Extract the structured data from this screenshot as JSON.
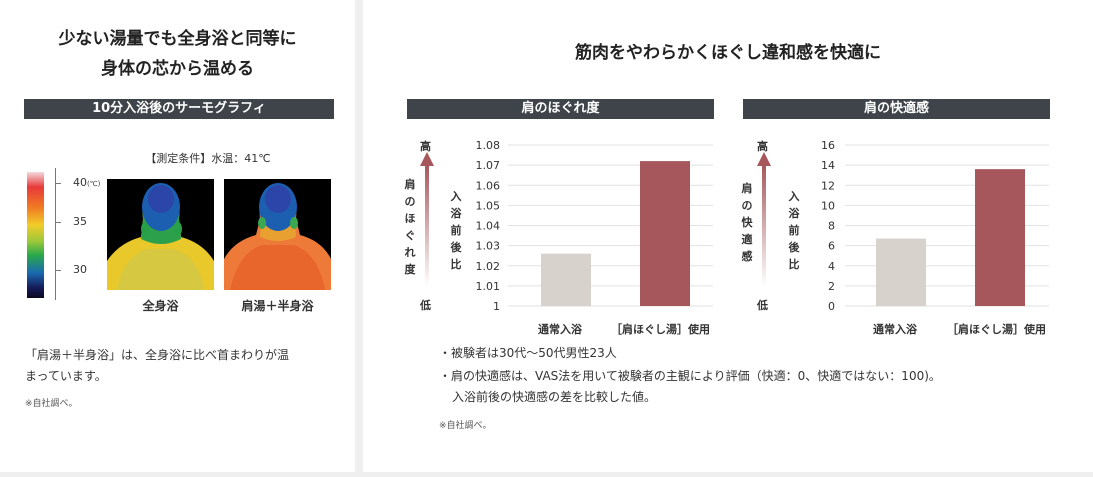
{
  "left": {
    "title_line1": "少ない湯量でも全身浴と同等に",
    "title_line2": "身体の芯から温める",
    "section_label": "10分入浴後のサーモグラフィ",
    "condition": "【測定条件】水温：41℃",
    "scale_labels": [
      "40",
      "35",
      "30"
    ],
    "scale_unit": "(℃)",
    "image_labels": [
      "全身浴",
      "肩湯＋半身浴"
    ],
    "description_line1": "「肩湯＋半身浴」は、全身浴に比べ首まわりが温",
    "description_line2": "まっています。",
    "note": "※自社調べ。"
  },
  "right": {
    "title": "筋肉をやわらかくほぐし違和感を快適に",
    "bullet1": "・被験者は30代〜50代男性23人",
    "bullet2": "・肩の快適感は、VAS法を用いて被験者の主観により評価（快適：0、快適ではない：100)。",
    "bullet2_cont": "入浴前後の快適感の差を比較した値。",
    "note": "※自社調べ。"
  },
  "colors": {
    "bar_gray": "#d8d2cd",
    "bar_red": "#a5575b",
    "header_bg": "#3f444a"
  },
  "chart_data": [
    {
      "type": "bar",
      "title": "肩のほぐれ度",
      "categories": [
        "通常入浴",
        "［肩ほぐし湯］使用"
      ],
      "values": [
        1.026,
        1.072
      ],
      "ylabel": "入浴前後比",
      "ylim": [
        1,
        1.08
      ],
      "yticks": [
        "1.08",
        "1.07",
        "1.06",
        "1.05",
        "1.04",
        "1.03",
        "1.02",
        "1.01",
        "1"
      ],
      "arrow_high": "高",
      "arrow_low": "低",
      "arrow_label": "肩のほぐれ度",
      "grid": true
    },
    {
      "type": "bar",
      "title": "肩の快適感",
      "categories": [
        "通常入浴",
        "［肩ほぐし湯］使用"
      ],
      "values": [
        6.7,
        13.6
      ],
      "ylabel": "入浴前後比",
      "ylim": [
        0,
        16
      ],
      "yticks": [
        "16",
        "14",
        "12",
        "10",
        "8",
        "6",
        "4",
        "2",
        "0"
      ],
      "arrow_high": "高",
      "arrow_low": "低",
      "arrow_label": "肩の快適感",
      "grid": true
    }
  ]
}
